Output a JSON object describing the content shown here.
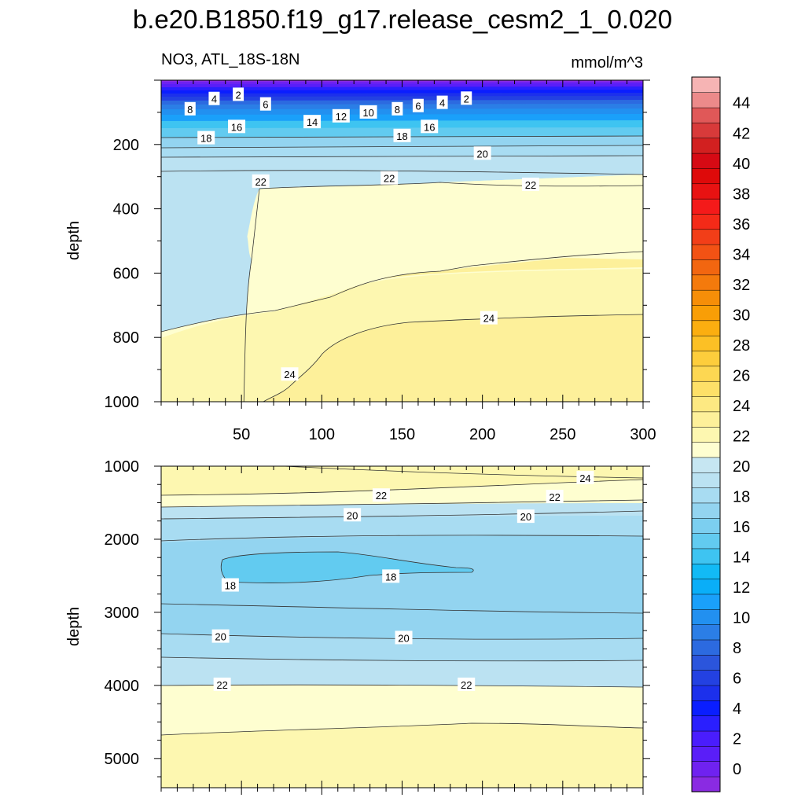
{
  "title": "b.e20.B1850.f19_g17.release_cesm2_1_0.020",
  "left_string": "NO3, ATL_18S-18N",
  "right_string": "mmol/m^3",
  "chart_data": [
    {
      "type": "contour",
      "panel": "upper",
      "ylabel": "depth",
      "xlim": [
        0,
        300
      ],
      "ylim": [
        1000,
        0
      ],
      "x_ticks": [
        50,
        100,
        150,
        200,
        250,
        300
      ],
      "y_ticks": [
        200,
        400,
        600,
        800,
        1000
      ],
      "contour_labels": [
        {
          "text": "2",
          "x": 48,
          "y": 45
        },
        {
          "text": "4",
          "x": 33,
          "y": 58
        },
        {
          "text": "8",
          "x": 18,
          "y": 90
        },
        {
          "text": "6",
          "x": 65,
          "y": 75
        },
        {
          "text": "16",
          "x": 47,
          "y": 145
        },
        {
          "text": "18",
          "x": 28,
          "y": 180
        },
        {
          "text": "14",
          "x": 94,
          "y": 130
        },
        {
          "text": "12",
          "x": 112,
          "y": 112
        },
        {
          "text": "10",
          "x": 129,
          "y": 100
        },
        {
          "text": "8",
          "x": 147,
          "y": 90
        },
        {
          "text": "6",
          "x": 160,
          "y": 80
        },
        {
          "text": "4",
          "x": 175,
          "y": 70
        },
        {
          "text": "2",
          "x": 190,
          "y": 57
        },
        {
          "text": "16",
          "x": 167,
          "y": 145
        },
        {
          "text": "18",
          "x": 150,
          "y": 173
        },
        {
          "text": "20",
          "x": 200,
          "y": 228
        },
        {
          "text": "22",
          "x": 62,
          "y": 315
        },
        {
          "text": "22",
          "x": 142,
          "y": 305
        },
        {
          "text": "22",
          "x": 230,
          "y": 325
        },
        {
          "text": "24",
          "x": 204,
          "y": 740
        },
        {
          "text": "24",
          "x": 80,
          "y": 915
        }
      ]
    },
    {
      "type": "contour",
      "panel": "lower",
      "ylabel": "depth",
      "xlim": [
        0,
        300
      ],
      "ylim": [
        5400,
        1000
      ],
      "y_ticks": [
        1000,
        2000,
        3000,
        4000,
        5000
      ],
      "contour_labels": [
        {
          "text": "24",
          "x": 264,
          "y": 1160
        },
        {
          "text": "22",
          "x": 137,
          "y": 1400
        },
        {
          "text": "22",
          "x": 245,
          "y": 1420
        },
        {
          "text": "20",
          "x": 119,
          "y": 1670
        },
        {
          "text": "20",
          "x": 227,
          "y": 1690
        },
        {
          "text": "18",
          "x": 43,
          "y": 2630
        },
        {
          "text": "18",
          "x": 143,
          "y": 2510
        },
        {
          "text": "20",
          "x": 37,
          "y": 3330
        },
        {
          "text": "20",
          "x": 151,
          "y": 3350
        },
        {
          "text": "22",
          "x": 38,
          "y": 3990
        },
        {
          "text": "22",
          "x": 190,
          "y": 3990
        }
      ]
    }
  ],
  "colorbar": {
    "labels": [
      "0",
      "2",
      "4",
      "6",
      "8",
      "10",
      "12",
      "14",
      "16",
      "18",
      "20",
      "22",
      "24",
      "26",
      "28",
      "30",
      "32",
      "34",
      "36",
      "38",
      "40",
      "42",
      "44"
    ],
    "colors": [
      "#8a2be2",
      "#6f22f0",
      "#5a1ef8",
      "#4a1dfd",
      "#2a1ffe",
      "#0a1eff",
      "#1c30ec",
      "#2341e2",
      "#2b55dc",
      "#2c6ae0",
      "#2b7ee6",
      "#2290f0",
      "#1aa0fa",
      "#0aaef8",
      "#12baf5",
      "#3ec4f1",
      "#62cbf0",
      "#7ccff0",
      "#93d4f0",
      "#a8dcf2",
      "#bbe2f2",
      "#c6e6f2",
      "#fefed0",
      "#fdf7b0",
      "#fdf09a",
      "#fde982",
      "#fde068",
      "#fdd752",
      "#fdcd3c",
      "#fcc025",
      "#fbae10",
      "#f99e06",
      "#f68e08",
      "#f47a0c",
      "#f26610",
      "#f25214",
      "#f23e18",
      "#f42a18",
      "#f41a1a",
      "#e81212",
      "#de0a0a",
      "#d60a14",
      "#d22020",
      "#d83a3a",
      "#e05858",
      "#ec8a8a",
      "#f6b4b4"
    ]
  }
}
